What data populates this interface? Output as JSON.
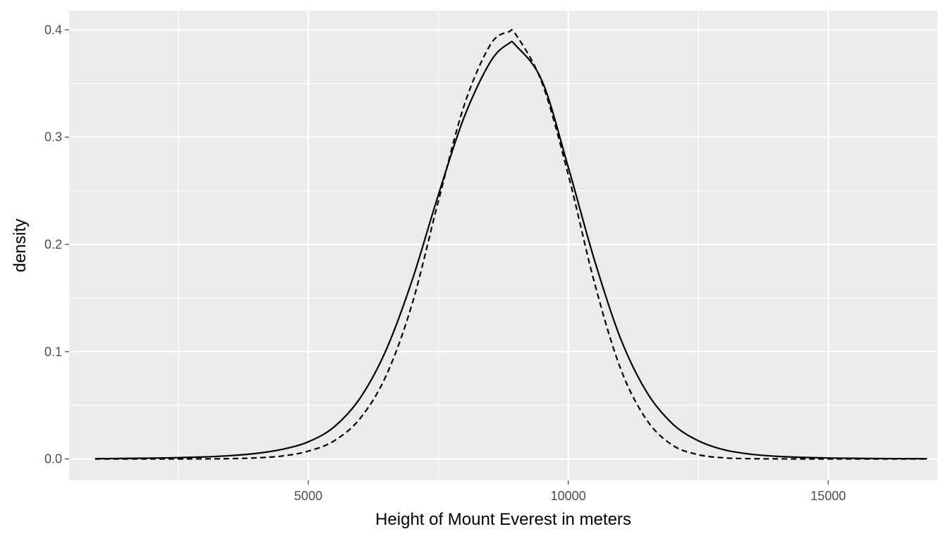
{
  "chart_data": {
    "type": "line",
    "xlabel": "Height of Mount Everest in meters",
    "ylabel": "density",
    "xlim": [
      400,
      17100
    ],
    "ylim": [
      -0.02,
      0.418
    ],
    "x_ticks": [
      5000,
      10000,
      15000
    ],
    "x_tick_labels": [
      "5000",
      "10000",
      "15000"
    ],
    "y_ticks": [
      0.0,
      0.1,
      0.2,
      0.3,
      0.4
    ],
    "y_tick_labels": [
      "0.0",
      "0.1",
      "0.2",
      "0.3",
      "0.4"
    ],
    "grid": true,
    "legend": "none",
    "colors": {
      "panel_background": "#ebebeb",
      "grid_line": "#ffffff",
      "tick_label": "#4d4d4d",
      "line": "#000000"
    },
    "series": [
      {
        "linestyle": "solid",
        "x": [
          900,
          1500,
          2000,
          2500,
          3000,
          3500,
          4000,
          4500,
          5000,
          5500,
          6000,
          6500,
          7000,
          7500,
          8000,
          8500,
          8848,
          9000,
          9500,
          10000,
          10500,
          11000,
          11500,
          12000,
          12500,
          13000,
          13500,
          14000,
          14500,
          15000,
          15500,
          16000,
          16900
        ],
        "y": [
          0.0003,
          0.0005,
          0.0008,
          0.0012,
          0.0019,
          0.0031,
          0.0052,
          0.009,
          0.016,
          0.03,
          0.057,
          0.102,
          0.167,
          0.246,
          0.319,
          0.37,
          0.387,
          0.385,
          0.352,
          0.272,
          0.186,
          0.113,
          0.063,
          0.033,
          0.017,
          0.0085,
          0.0045,
          0.0025,
          0.0015,
          0.0009,
          0.0006,
          0.0004,
          0.0002
        ]
      },
      {
        "linestyle": "dashed",
        "x": [
          900,
          2000,
          3000,
          3500,
          4000,
          4500,
          5000,
          5500,
          6000,
          6500,
          7000,
          7500,
          8000,
          8500,
          8848,
          9000,
          9500,
          10000,
          10500,
          11000,
          11500,
          12000,
          12500,
          13000,
          13500,
          14000,
          15000,
          16900
        ],
        "y": [
          0.0,
          0.0,
          0.0001,
          0.0003,
          0.001,
          0.0028,
          0.0073,
          0.017,
          0.038,
          0.078,
          0.145,
          0.24,
          0.33,
          0.386,
          0.398,
          0.395,
          0.35,
          0.265,
          0.165,
          0.085,
          0.037,
          0.013,
          0.004,
          0.001,
          0.0003,
          0.0001,
          0.0,
          0.0
        ]
      }
    ]
  }
}
